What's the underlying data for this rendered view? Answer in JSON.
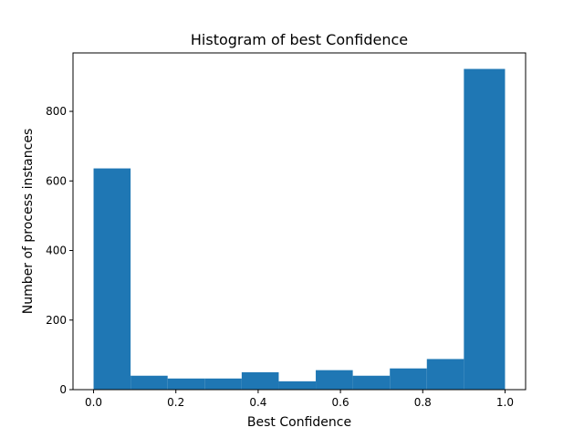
{
  "chart_data": {
    "type": "bar",
    "title": "Histogram of best Confidence",
    "xlabel": "Best Confidence",
    "ylabel": "Number of process instances",
    "bin_edges": [
      0.0,
      0.09,
      0.18,
      0.27,
      0.36,
      0.45,
      0.54,
      0.63,
      0.72,
      0.81,
      0.9,
      1.0
    ],
    "values": [
      636,
      40,
      32,
      32,
      50,
      24,
      56,
      40,
      61,
      88,
      922
    ],
    "xlim": [
      -0.05,
      1.05
    ],
    "ylim": [
      0,
      968
    ],
    "x_ticks": [
      0.0,
      0.2,
      0.4,
      0.6,
      0.8,
      1.0
    ],
    "x_tick_labels": [
      "0.0",
      "0.2",
      "0.4",
      "0.6",
      "0.8",
      "1.0"
    ],
    "y_ticks": [
      0,
      200,
      400,
      600,
      800
    ],
    "y_tick_labels": [
      "0",
      "200",
      "400",
      "600",
      "800"
    ],
    "bar_color": "#1f77b4",
    "grid": false,
    "legend": null
  }
}
